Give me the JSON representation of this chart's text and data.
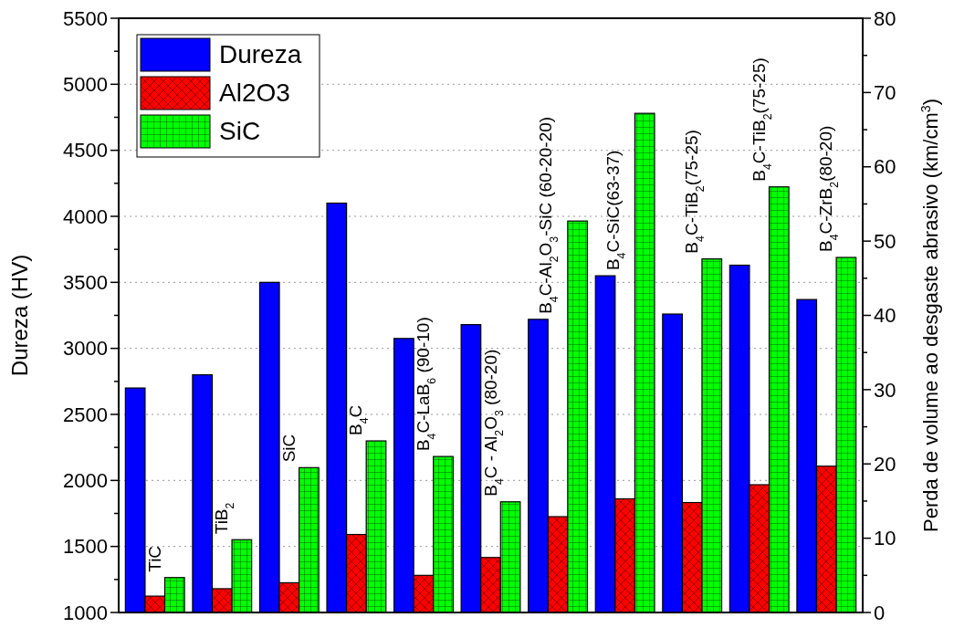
{
  "chart_data": {
    "type": "bar",
    "ylabel": "Dureza  (HV)",
    "y2label": "Perda de volume ao desgaste abrasivo (km/cm$^{3}$)",
    "categories": [
      "TiC",
      "TiB$_{2}$",
      "SiC",
      "B$_{4}$C",
      "B$_{4}$C-LaB$_{6}$ (90-10)",
      "B$_{4}$C - Al$_{2}$O$_{3}$ (80-20)",
      "B$_{4}$C-Al$_{2}$O$_{3}$-SiC (60-20-20)",
      "B$_{4}$C-SiC(63-37)",
      "B$_{4}$C-TiB$_{2}$(75-25)",
      "B$_{4}$C-TiB$_{2}$(75-25)",
      "B$_{4}$C-ZrB$_{2}$(80-20)"
    ],
    "series": [
      {
        "name": "Dureza",
        "color": "#0000ff",
        "values": [
          2700,
          2800,
          3500,
          4100,
          3075,
          3180,
          3220,
          3550,
          3260,
          3630,
          3370
        ]
      },
      {
        "name": "Al2O3",
        "color": "#ff0000",
        "axis": "y2",
        "values": [
          2.2,
          3.2,
          4.0,
          10.5,
          5.0,
          7.4,
          12.9,
          15.3,
          14.8,
          17.2,
          19.7
        ]
      },
      {
        "name": "SiC",
        "color": "#00ff00",
        "axis": "y2",
        "values": [
          4.7,
          9.8,
          19.5,
          23.1,
          21.0,
          14.9,
          52.7,
          67.2,
          47.6,
          57.3,
          47.8
        ]
      }
    ],
    "ylim": [
      1000,
      5500
    ],
    "yticks": [
      1000,
      {
        "value": 1250,
        "label": null
      },
      1500,
      {
        "value": 1750,
        "label": null
      },
      2000,
      {
        "value": 2250,
        "label": null
      },
      2500,
      {
        "value": 2750,
        "label": null
      },
      3000,
      {
        "value": 3250,
        "label": null
      },
      3500,
      {
        "value": 3750,
        "label": null
      },
      4000,
      {
        "value": 4250,
        "label": null
      },
      4500,
      {
        "value": 4750,
        "label": null
      },
      5000,
      {
        "value": 5250,
        "label": null
      },
      5500
    ],
    "y2lim": [
      0,
      80
    ],
    "y2ticks": [
      0,
      {
        "value": 5,
        "label": null
      },
      10,
      {
        "value": 15,
        "label": null
      },
      20,
      {
        "value": 25,
        "label": null
      },
      30,
      {
        "value": 35,
        "label": null
      },
      40,
      {
        "value": 45,
        "label": null
      },
      50,
      {
        "value": 55,
        "label": null
      },
      60,
      {
        "value": 65,
        "label": null
      },
      70,
      {
        "value": 75,
        "label": null
      },
      80
    ],
    "grid": "y",
    "legend": "top left"
  }
}
